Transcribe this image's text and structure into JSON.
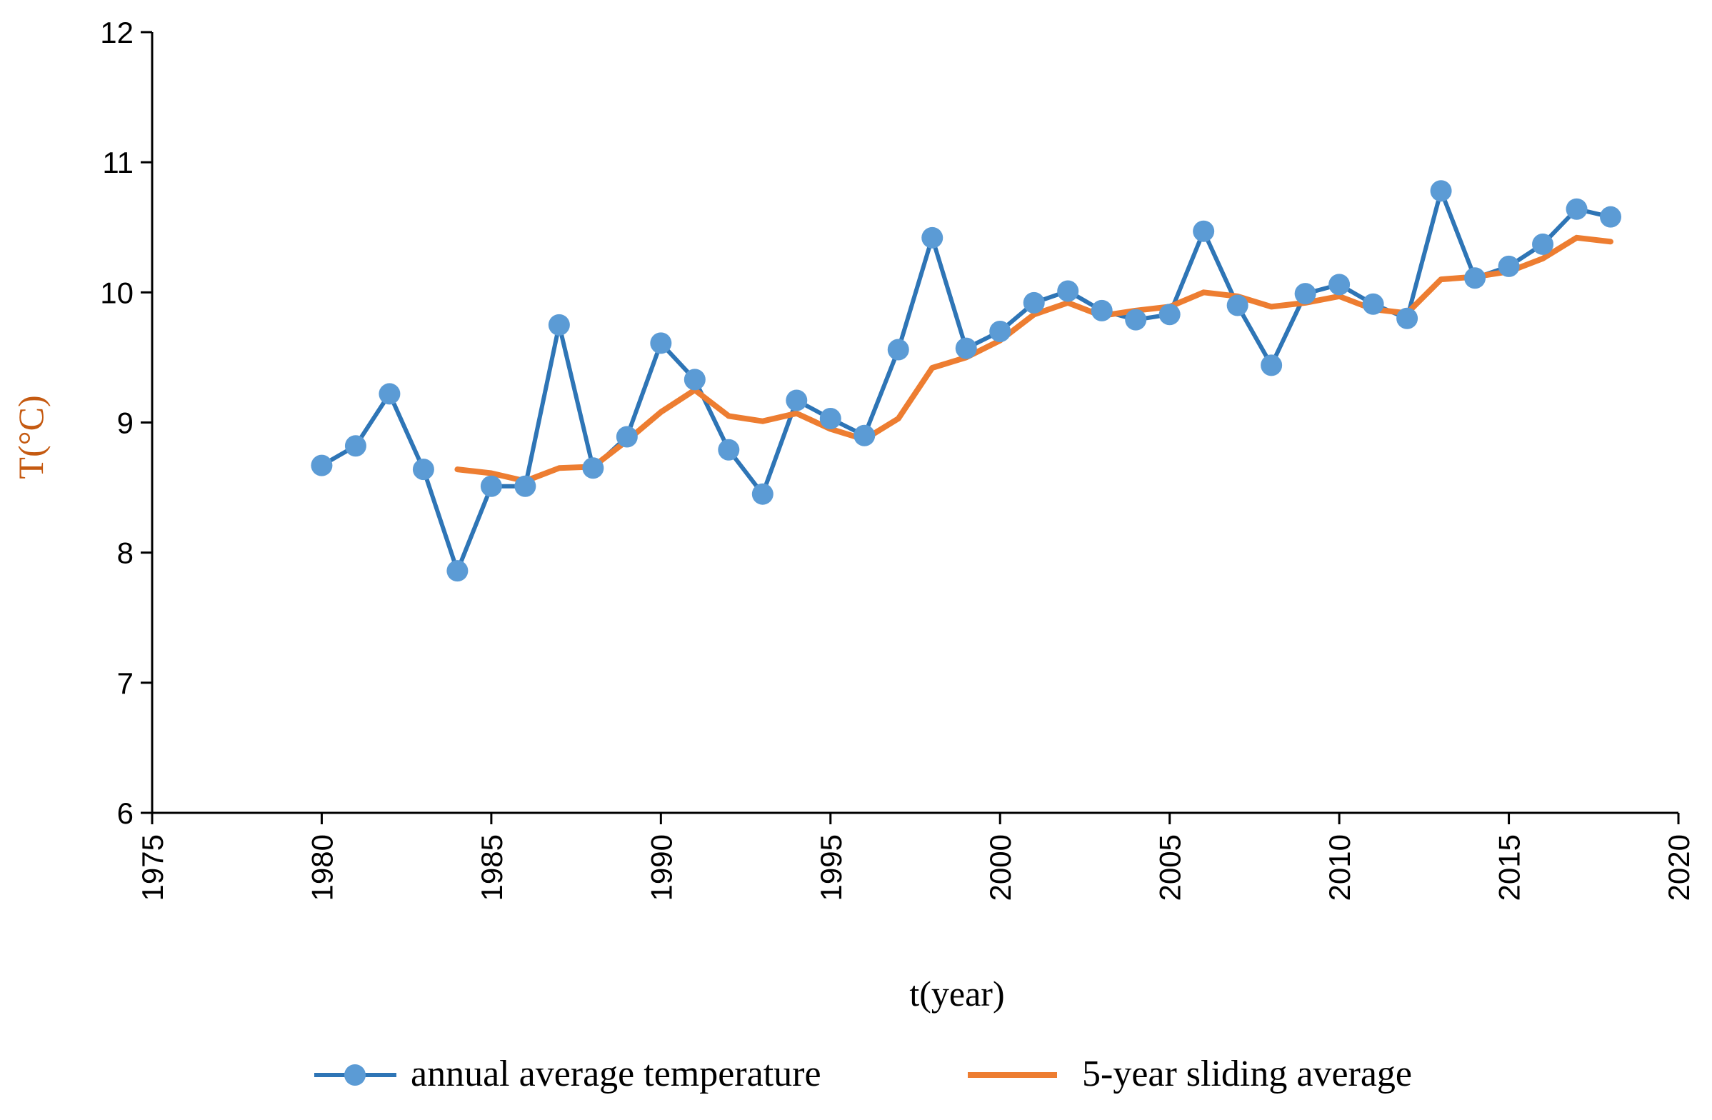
{
  "chart_data": {
    "type": "line",
    "title": "",
    "xlabel": "t(year)",
    "ylabel": "T(°C)",
    "xlim": [
      1975,
      2020
    ],
    "ylim": [
      6,
      12
    ],
    "xticks": [
      1975,
      1980,
      1985,
      1990,
      1995,
      2000,
      2005,
      2010,
      2015,
      2020
    ],
    "yticks": [
      6,
      7,
      8,
      9,
      10,
      11,
      12
    ],
    "grid": false,
    "legend_position": "bottom",
    "series": [
      {
        "name": "annual average temperature",
        "color": "#2E75B6",
        "marker_color": "#5B9BD5",
        "marker": "circle",
        "x": [
          1980,
          1981,
          1982,
          1983,
          1984,
          1985,
          1986,
          1987,
          1988,
          1989,
          1990,
          1991,
          1992,
          1993,
          1994,
          1995,
          1996,
          1997,
          1998,
          1999,
          2000,
          2001,
          2002,
          2003,
          2004,
          2005,
          2006,
          2007,
          2008,
          2009,
          2010,
          2011,
          2012,
          2013,
          2014,
          2015,
          2016,
          2017,
          2018
        ],
        "values": [
          8.67,
          8.82,
          9.22,
          8.64,
          7.86,
          8.51,
          8.51,
          9.75,
          8.65,
          8.89,
          9.61,
          9.33,
          8.79,
          8.45,
          9.17,
          9.03,
          8.9,
          9.56,
          10.42,
          9.57,
          9.7,
          9.92,
          10.01,
          9.86,
          9.79,
          9.83,
          10.47,
          9.9,
          9.44,
          9.99,
          10.06,
          9.91,
          9.8,
          10.78,
          10.11,
          10.2,
          10.37,
          10.64,
          10.58
        ]
      },
      {
        "name": "5-year sliding average",
        "color": "#ED7D31",
        "marker": "none",
        "x": [
          1984,
          1985,
          1986,
          1987,
          1988,
          1989,
          1990,
          1991,
          1992,
          1993,
          1994,
          1995,
          1996,
          1997,
          1998,
          1999,
          2000,
          2001,
          2002,
          2003,
          2004,
          2005,
          2006,
          2007,
          2008,
          2009,
          2010,
          2011,
          2012,
          2013,
          2014,
          2015,
          2016,
          2017,
          2018
        ],
        "values": [
          8.64,
          8.61,
          8.55,
          8.65,
          8.66,
          8.86,
          9.08,
          9.25,
          9.05,
          9.01,
          9.07,
          8.95,
          8.87,
          9.03,
          9.42,
          9.5,
          9.63,
          9.83,
          9.92,
          9.82,
          9.86,
          9.89,
          10.0,
          9.97,
          9.89,
          9.92,
          9.97,
          9.87,
          9.84,
          10.1,
          10.12,
          10.16,
          10.26,
          10.42,
          10.39
        ]
      }
    ]
  }
}
